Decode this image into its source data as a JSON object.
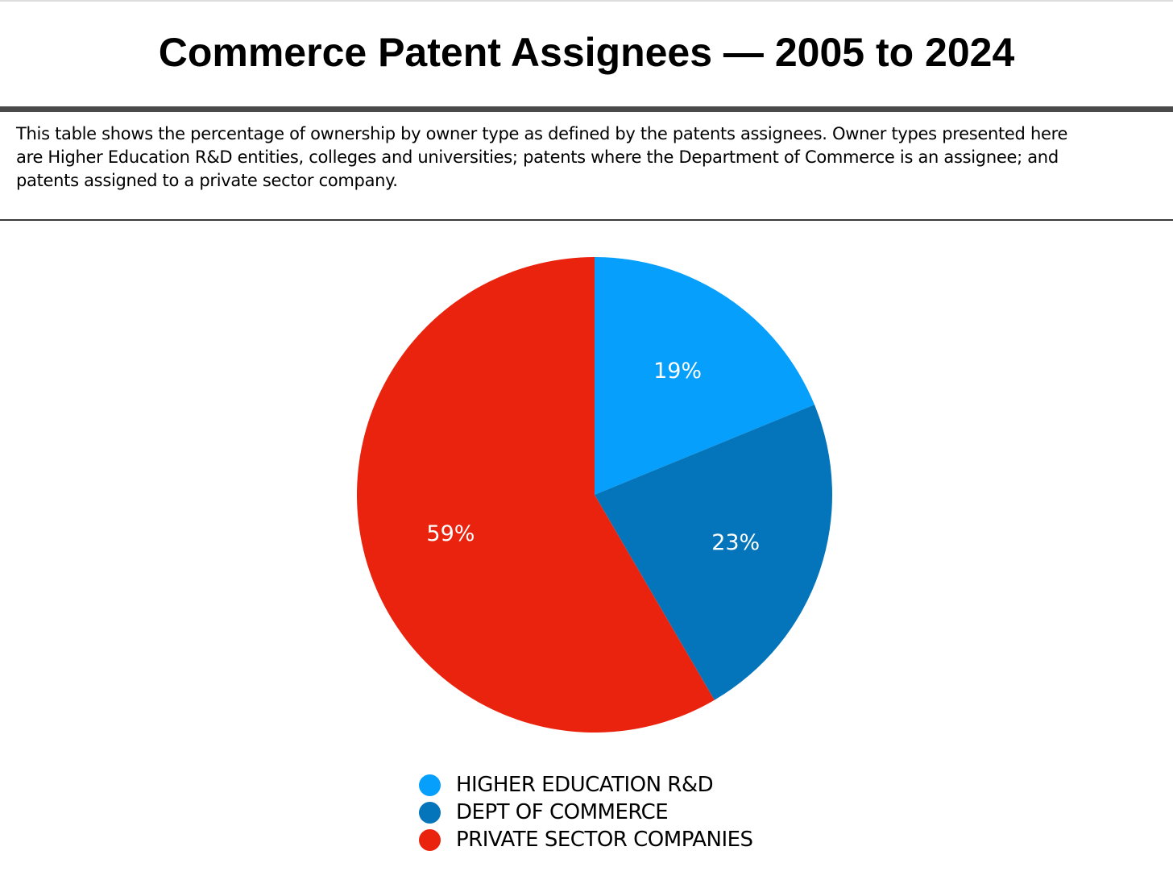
{
  "title": "Commerce Patent Assignees — 2005 to 2024",
  "description": "This table shows the percentage of ownership by owner type as defined by the patents assignees. Owner types presented here are Higher Education R&D entities, colleges and universities; patents where the Department of Commerce is an assignee; and patents assigned to a private sector company.",
  "chart_data": {
    "type": "pie",
    "title": "Commerce Patent Assignees — 2005 to 2024",
    "start_angle_deg": 0,
    "direction": "clockwise",
    "legend_position": "bottom",
    "slices": [
      {
        "name": "HIGHER EDUCATION R&D",
        "value": 19,
        "label": "19%",
        "color": "#069ffc"
      },
      {
        "name": "DEPT OF COMMERCE",
        "value": 23,
        "label": "23%",
        "color": "#0475ba"
      },
      {
        "name": "PRIVATE SECTOR COMPANIES",
        "value": 59,
        "label": "59%",
        "color": "#ea230e"
      }
    ]
  }
}
